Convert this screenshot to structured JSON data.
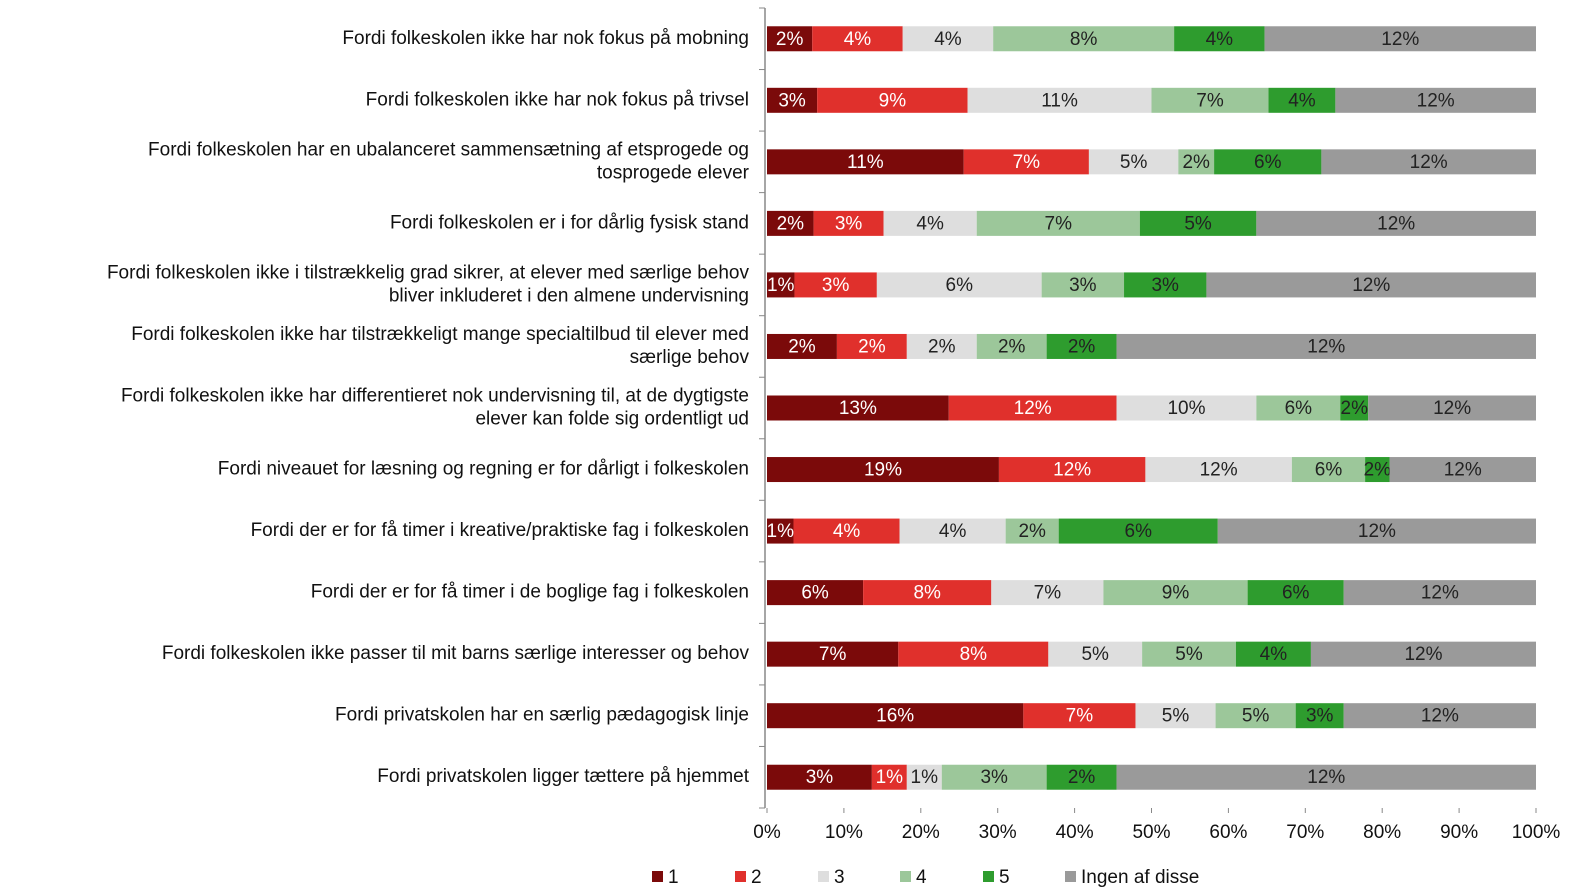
{
  "chart_data": {
    "type": "bar",
    "orientation": "horizontal",
    "stacked": "percent",
    "categories": [
      "Fordi folkeskolen ikke har nok fokus på mobning",
      "Fordi folkeskolen ikke har nok fokus på trivsel",
      "Fordi folkeskolen har en ubalanceret sammensætning af etsprogede og\ntosprogede elever",
      "Fordi folkeskolen er i for dårlig fysisk stand",
      "Fordi folkeskolen ikke i tilstrækkelig grad sikrer, at elever med særlige behov\nbliver inkluderet i den almene undervisning",
      "Fordi folkeskolen ikke har tilstrækkeligt mange specialtilbud til elever med\nsærlige behov",
      "Fordi folkeskolen ikke har differentieret nok undervisning til, at de dygtigste\nelever kan folde sig ordentligt ud",
      "Fordi niveauet for læsning og regning er for dårligt i folkeskolen",
      "Fordi der er for få timer i kreative/praktiske fag i folkeskolen",
      "Fordi der er for få timer i de boglige fag i folkeskolen",
      "Fordi folkeskolen ikke passer til mit barns særlige interesser og behov",
      "Fordi privatskolen har en særlig pædagogisk linje",
      "Fordi privatskolen ligger tættere på hjemmet"
    ],
    "series": [
      {
        "name": "1",
        "color": "#7b0a0a",
        "label_color": "#ffffff",
        "values": [
          2,
          3,
          11,
          2,
          1,
          2,
          13,
          19,
          1,
          6,
          7,
          16,
          3
        ],
        "value_labels": [
          "2%",
          "3%",
          "11%",
          "2%",
          "1%",
          "2%",
          "13%",
          "19%",
          "1%",
          "6%",
          "7%",
          "16%",
          "3%"
        ]
      },
      {
        "name": "2",
        "color": "#e0302c",
        "label_color": "#ffffff",
        "values": [
          4,
          9,
          7,
          3,
          3,
          2,
          12,
          12,
          4,
          8,
          8,
          7,
          1
        ],
        "value_labels": [
          "4%",
          "9%",
          "7%",
          "3%",
          "3%",
          "2%",
          "12%",
          "12%",
          "4%",
          "8%",
          "8%",
          "7%",
          "1%"
        ]
      },
      {
        "name": "3",
        "color": "#dedede",
        "label_color": "#222222",
        "values": [
          4,
          11,
          5,
          4,
          6,
          2,
          10,
          12,
          4,
          7,
          5,
          5,
          1
        ],
        "value_labels": [
          "4%",
          "11%",
          "5%",
          "4%",
          "6%",
          "2%",
          "10%",
          "12%",
          "4%",
          "7%",
          "5%",
          "5%",
          "1%"
        ]
      },
      {
        "name": "4",
        "color": "#9cc79a",
        "label_color": "#222222",
        "values": [
          8,
          7,
          2,
          7,
          3,
          2,
          6,
          6,
          2,
          9,
          5,
          5,
          3
        ],
        "value_labels": [
          "8%",
          "7%",
          "2%",
          "7%",
          "3%",
          "2%",
          "6%",
          "6%",
          "2%",
          "9%",
          "5%",
          "5%",
          "3%"
        ]
      },
      {
        "name": "5",
        "color": "#2e9c2e",
        "label_color": "#222222",
        "values": [
          4,
          4,
          6,
          5,
          3,
          2,
          2,
          2,
          6,
          6,
          4,
          3,
          2
        ],
        "value_labels": [
          "4%",
          "4%",
          "6%",
          "5%",
          "3%",
          "2%",
          "2%",
          "2%",
          "6%",
          "6%",
          "4%",
          "3%",
          "2%"
        ]
      },
      {
        "name": "Ingen af disse",
        "color": "#9a9a9a",
        "label_color": "#222222",
        "values": [
          12,
          12,
          12,
          12,
          12,
          12,
          12,
          12,
          12,
          12,
          12,
          12,
          12
        ],
        "value_labels": [
          "12%",
          "12%",
          "12%",
          "12%",
          "12%",
          "12%",
          "12%",
          "12%",
          "12%",
          "12%",
          "12%",
          "12%",
          "12%"
        ]
      }
    ],
    "xlim": [
      0,
      100
    ],
    "xticks": [
      {
        "value": 0,
        "label": "0%"
      },
      {
        "value": 10,
        "label": "10%"
      },
      {
        "value": 20,
        "label": "20%"
      },
      {
        "value": 30,
        "label": "30%"
      },
      {
        "value": 40,
        "label": "40%"
      },
      {
        "value": 50,
        "label": "50%"
      },
      {
        "value": 60,
        "label": "60%"
      },
      {
        "value": 70,
        "label": "70%"
      },
      {
        "value": 80,
        "label": "80%"
      },
      {
        "value": 90,
        "label": "90%"
      },
      {
        "value": 100,
        "label": "100%"
      }
    ],
    "legend": "bottom"
  }
}
